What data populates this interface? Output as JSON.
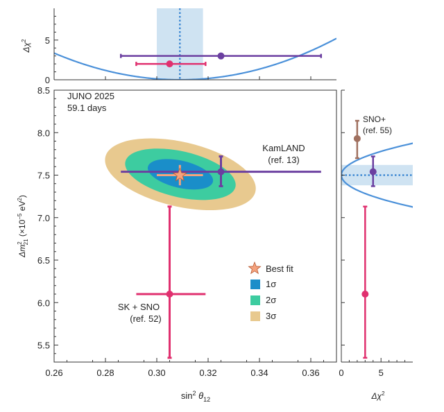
{
  "chart_data": {
    "type": "scatter",
    "main_panel": {
      "annotation_title": "JUNO 2025",
      "annotation_subtitle": "59.1 days",
      "xlabel_main": "sin",
      "xlabel_sup": "2",
      "xlabel_theta": "θ",
      "xlabel_sub": "12",
      "ylabel_pre": "Δm",
      "ylabel_sup": "2",
      "ylabel_sub": "21",
      "ylabel_paren_open": " (×10",
      "ylabel_exp": "−5",
      "ylabel_unit": " eV",
      "ylabel_unit_sup": "2",
      "ylabel_paren_close": ")",
      "xlim": [
        0.26,
        0.37
      ],
      "ylim": [
        5.3,
        8.5
      ],
      "xticks": [
        "0.26",
        "0.28",
        "0.30",
        "0.32",
        "0.34",
        "0.36"
      ],
      "xtick_values": [
        0.26,
        0.28,
        0.3,
        0.32,
        0.34,
        0.36
      ],
      "yticks": [
        "5.5",
        "6.0",
        "6.5",
        "7.0",
        "7.5",
        "8.0",
        "8.5"
      ],
      "ytick_values": [
        5.5,
        6.0,
        6.5,
        7.0,
        7.5,
        8.0,
        8.5
      ],
      "best_fit": {
        "x": 0.309,
        "y": 7.5,
        "xerr": 0.009,
        "yerr": 0.12
      },
      "contours": [
        {
          "name": "3σ",
          "color": "#e8c98f",
          "rx": 0.03,
          "ry": 0.38
        },
        {
          "name": "2σ",
          "color": "#3dcca0",
          "rx": 0.022,
          "ry": 0.27
        },
        {
          "name": "1σ",
          "color": "#1a8ec9",
          "rx": 0.013,
          "ry": 0.16
        }
      ],
      "contour_center": {
        "x": 0.3092,
        "y": 7.51
      },
      "kamland": {
        "label_line1": "KamLAND",
        "label_line2": "(ref. 13)",
        "x": 0.325,
        "y": 7.54,
        "xlo": 0.286,
        "xhi": 0.364,
        "ylo": 7.37,
        "yhi": 7.72,
        "color": "#6b3fa0"
      },
      "sksno": {
        "label_line1": "SK + SNO",
        "label_line2": "(ref. 52)",
        "x": 0.305,
        "y": 6.1,
        "xlo": 0.292,
        "xhi": 0.319,
        "ylo": 5.35,
        "yhi": 7.13,
        "color": "#e0306f"
      },
      "legend": {
        "best_fit": "Best fit",
        "s1": "1σ",
        "s2": "2σ",
        "s3": "3σ"
      }
    },
    "top_panel": {
      "ylabel_pre": "Δχ",
      "ylabel_sup": "2",
      "ylim": [
        0,
        9
      ],
      "yticks": [
        "0",
        "5"
      ],
      "ytick_values": [
        0,
        5
      ],
      "band": {
        "xlo": 0.3,
        "xhi": 0.318
      },
      "best": 0.309,
      "parabola_a": 1400,
      "kamland": {
        "x": 0.325,
        "y": 3.0,
        "xlo": 0.286,
        "xhi": 0.364
      },
      "sksno": {
        "x": 0.305,
        "y": 2.0,
        "xlo": 0.292,
        "xhi": 0.319
      }
    },
    "right_panel": {
      "xlabel_pre": "Δχ",
      "xlabel_sup": "2",
      "xlim": [
        0,
        9
      ],
      "xticks": [
        "0",
        "5"
      ],
      "xtick_values": [
        0,
        5
      ],
      "band": {
        "ylo": 7.38,
        "yhi": 7.62
      },
      "best": 7.5,
      "parabola_a": 64,
      "sno_plus": {
        "label_line1": "SNO+",
        "label_line2": "(ref. 55)",
        "x": 2.0,
        "y": 7.93,
        "ylo": 7.7,
        "yhi": 8.14,
        "color": "#a0705f"
      },
      "kamland": {
        "x": 4.0,
        "y": 7.54,
        "ylo": 7.37,
        "yhi": 7.72
      },
      "sksno": {
        "x": 3.0,
        "y": 6.1,
        "ylo": 5.35,
        "yhi": 7.13
      }
    },
    "colors": {
      "curve": "#4a90d9",
      "band": "#cfe3f2",
      "best_line": "#2f7fd0",
      "axis": "#333333"
    }
  }
}
